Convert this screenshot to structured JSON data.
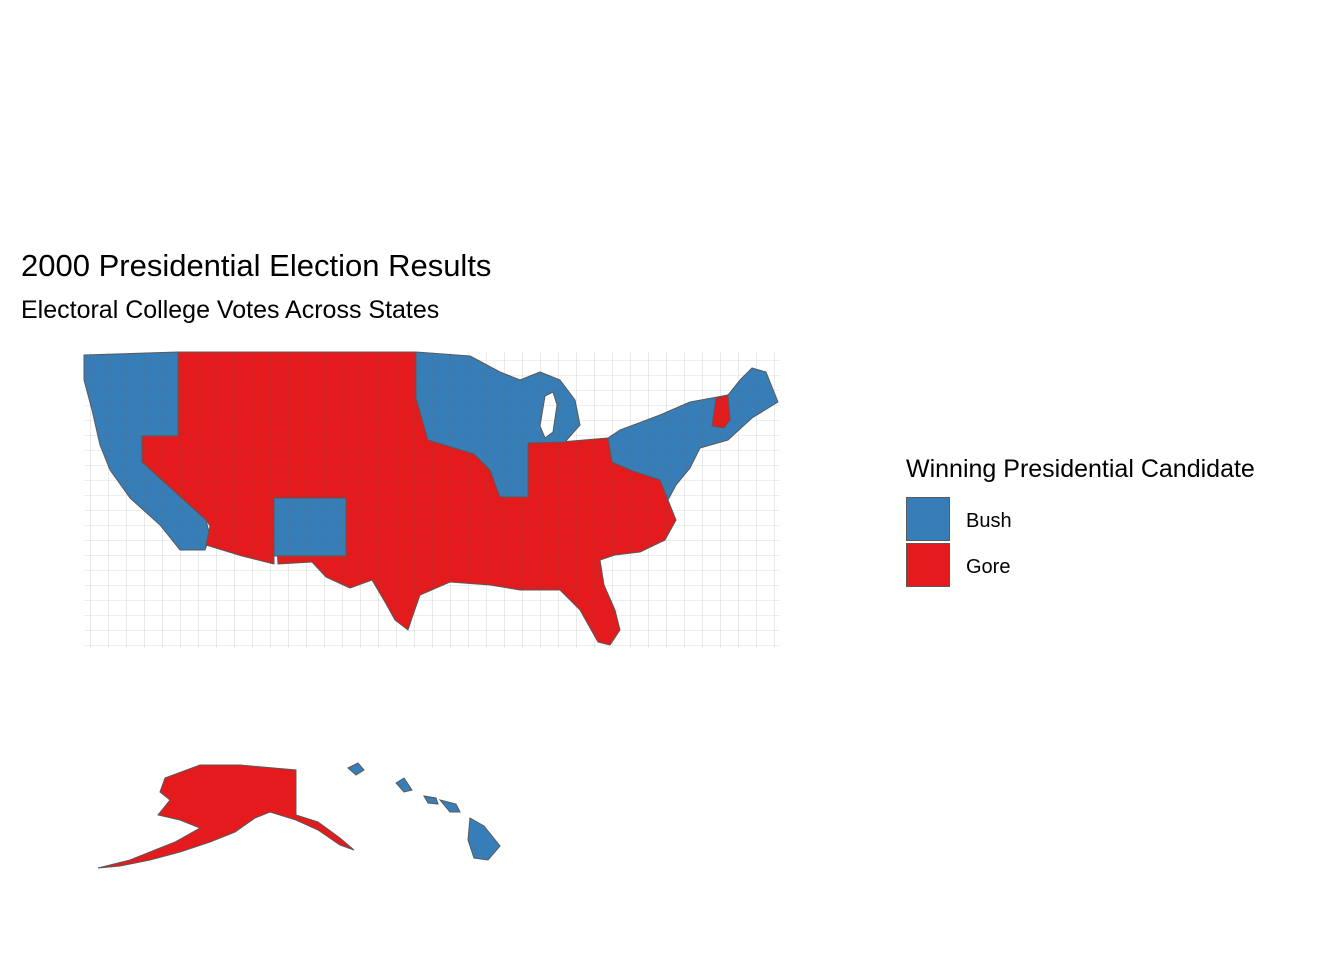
{
  "title": "2000 Presidential Election Results",
  "subtitle": "Electoral College Votes Across States",
  "legend": {
    "title": "Winning Presidential Candidate",
    "items": [
      {
        "label": "Bush",
        "color": "#377eb8"
      },
      {
        "label": "Gore",
        "color": "#e41a1c"
      }
    ]
  },
  "colors": {
    "bush": "#377eb8",
    "gore": "#e41a1c",
    "border": "#595959"
  }
}
